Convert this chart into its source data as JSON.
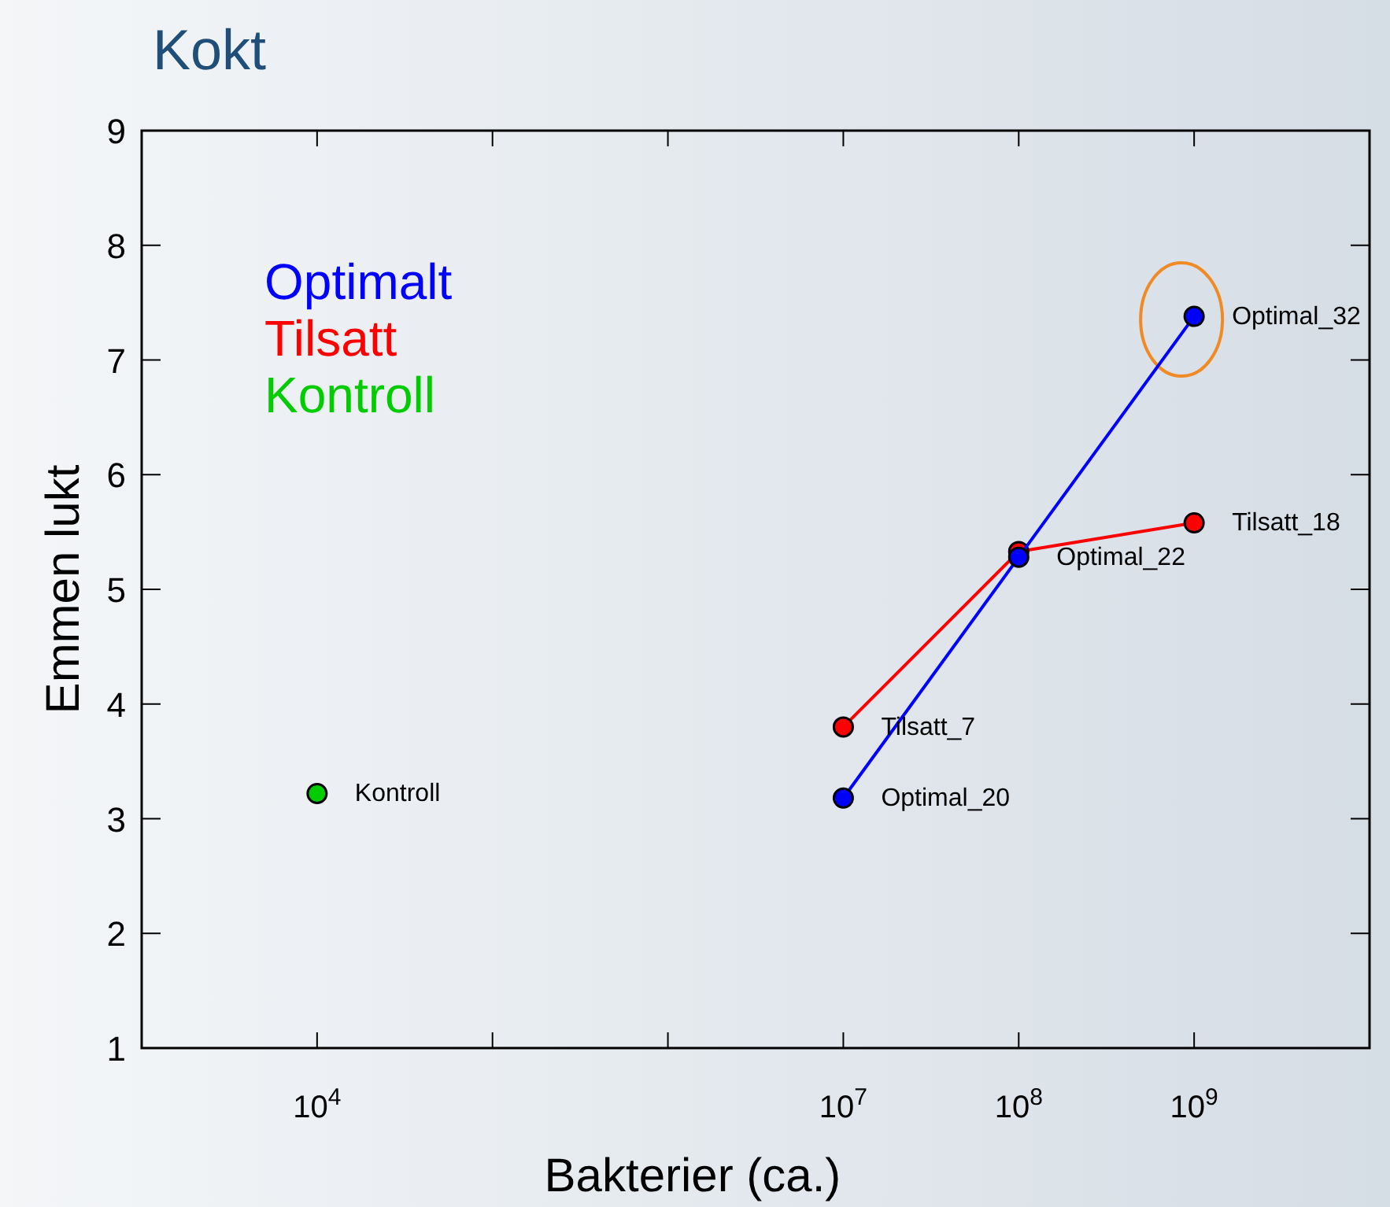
{
  "chart_data": {
    "type": "line",
    "title": "Kokt",
    "xlabel": "Bakterier (ca.)",
    "ylabel": "Emmen lukt",
    "log": "x",
    "xlim": [
      1000,
      10000000000
    ],
    "xticks": [
      {
        "value": 1000,
        "label": null
      },
      {
        "value": 10000,
        "label": "10$^{4}$"
      },
      {
        "value": 100000,
        "label": null
      },
      {
        "value": 1000000,
        "label": null
      },
      {
        "value": 10000000,
        "label": "10$^{7}$"
      },
      {
        "value": 100000000,
        "label": "10$^{8}$"
      },
      {
        "value": 1000000000,
        "label": "10$^{9}$"
      },
      {
        "value": 10000000000,
        "label": null
      }
    ],
    "ylim": [
      1,
      9
    ],
    "yticks": [
      1,
      2,
      3,
      4,
      5,
      6,
      7,
      8,
      9
    ],
    "grid": false,
    "legend": "top left",
    "marker": "circle",
    "line_style": "solid",
    "series": [
      {
        "name": "Optimalt",
        "color": "#0000ff",
        "x": [
          10000000,
          100000000,
          1000000000
        ],
        "values": [
          3.18,
          5.28,
          7.38
        ]
      },
      {
        "name": "Tilsatt",
        "color": "#ff0000",
        "x": [
          10000000,
          100000000,
          1000000000
        ],
        "values": [
          3.8,
          5.33,
          5.58
        ]
      },
      {
        "name": "Kontroll",
        "type": "scatter",
        "color": "#00cc00",
        "x": [
          10000
        ],
        "values": [
          3.22
        ]
      }
    ],
    "annotations": [
      {
        "text": "Kontroll",
        "x": 10000,
        "y": 3.22
      },
      {
        "text": "Tilsatt_7",
        "x": 10000000,
        "y": 3.8
      },
      {
        "text": "Optimal_20",
        "x": 10000000,
        "y": 3.18
      },
      {
        "text": "Optimal_22",
        "x": 100000000,
        "y": 5.28
      },
      {
        "text": "Tilsatt_18",
        "x": 1000000000,
        "y": 5.58
      },
      {
        "text": "Optimal_32",
        "x": 1000000000,
        "y": 7.38
      }
    ]
  }
}
